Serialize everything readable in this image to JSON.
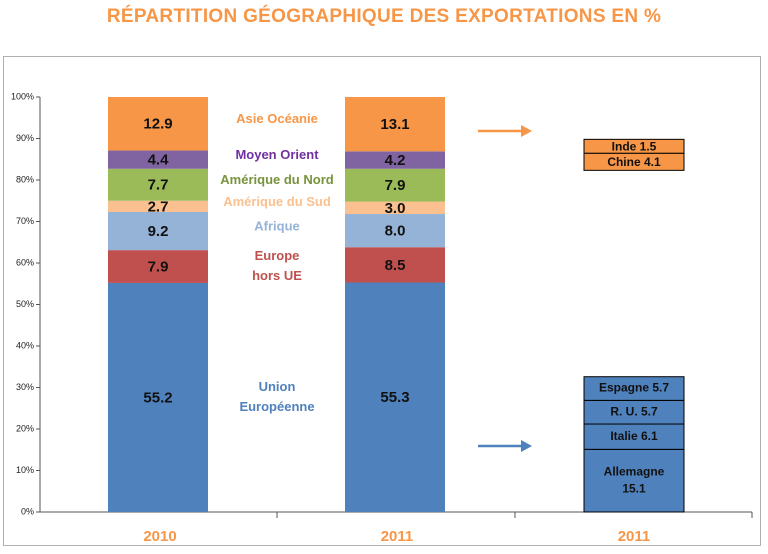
{
  "title": "RÉPARTITION GÉOGRAPHIQUE DES EXPORTATIONS EN %",
  "chart_data": {
    "type": "bar",
    "stacked": true,
    "y_ticks": [
      "0%",
      "10%",
      "20%",
      "30%",
      "40%",
      "50%",
      "60%",
      "70%",
      "80%",
      "90%",
      "100%"
    ],
    "ylim": [
      0,
      100
    ],
    "categories": [
      "2010",
      "2011"
    ],
    "series": [
      {
        "name": "Union Européenne",
        "label_lines": [
          "Union",
          "Européenne"
        ],
        "color": "#4f81bd",
        "label_color": "#4f81bd",
        "values": [
          55.2,
          55.3
        ],
        "display": [
          "55.2",
          "55.3"
        ]
      },
      {
        "name": "Europe hors UE",
        "label_lines": [
          "Europe",
          "hors UE"
        ],
        "color": "#c0504d",
        "label_color": "#c0504d",
        "values": [
          7.9,
          8.5
        ],
        "display": [
          "7.9",
          "8.5"
        ]
      },
      {
        "name": "Afrique",
        "label_lines": [
          "Afrique"
        ],
        "color": "#95b3d7",
        "label_color": "#95b3d7",
        "values": [
          9.2,
          8.0
        ],
        "display": [
          "9.2",
          "8.0"
        ]
      },
      {
        "name": "Amérique du Sud",
        "label_lines": [
          "Amérique du Sud"
        ],
        "color": "#fac090",
        "label_color": "#fac090",
        "values": [
          2.7,
          3.0
        ],
        "display": [
          "2.7",
          "3.0"
        ]
      },
      {
        "name": "Amérique du Nord",
        "label_lines": [
          "Amérique du Nord"
        ],
        "color": "#9bbb59",
        "label_color": "#77933c",
        "values": [
          7.7,
          7.9
        ],
        "display": [
          "7.7",
          "7.9"
        ]
      },
      {
        "name": "Moyen Orient",
        "label_lines": [
          "Moyen Orient"
        ],
        "color": "#8064a2",
        "label_color": "#7030a0",
        "values": [
          4.4,
          4.2
        ],
        "display": [
          "4.4",
          "4.2"
        ]
      },
      {
        "name": "Asie Océanie",
        "label_lines": [
          "Asie Océanie"
        ],
        "color": "#f79646",
        "label_color": "#f79646",
        "values": [
          12.9,
          13.1
        ],
        "display": [
          "12.9",
          "13.1"
        ]
      }
    ],
    "breakdown": {
      "category": "2011",
      "eu": {
        "color": "#4f81bd",
        "arrow_color": "#4f81bd",
        "items": [
          {
            "label": "Allemagne 15.1",
            "lines": [
              "Allemagne",
              "15.1"
            ],
            "value": 15.1
          },
          {
            "label": "Italie 6.1",
            "lines": [
              "Italie 6.1"
            ],
            "value": 6.1
          },
          {
            "label": "R. U. 5.7",
            "lines": [
              "R. U.  5.7"
            ],
            "value": 5.7
          },
          {
            "label": "Espagne 5.7",
            "lines": [
              "Espagne 5.7"
            ],
            "value": 5.7
          }
        ]
      },
      "asia": {
        "color": "#f79646",
        "arrow_color": "#f79646",
        "items": [
          {
            "label": "Inde 1.5",
            "lines": [
              "Inde 1.5"
            ],
            "value": 1.5
          },
          {
            "label": "Chine 4.1",
            "lines": [
              "Chine 4.1"
            ],
            "value": 4.1
          }
        ]
      }
    }
  }
}
